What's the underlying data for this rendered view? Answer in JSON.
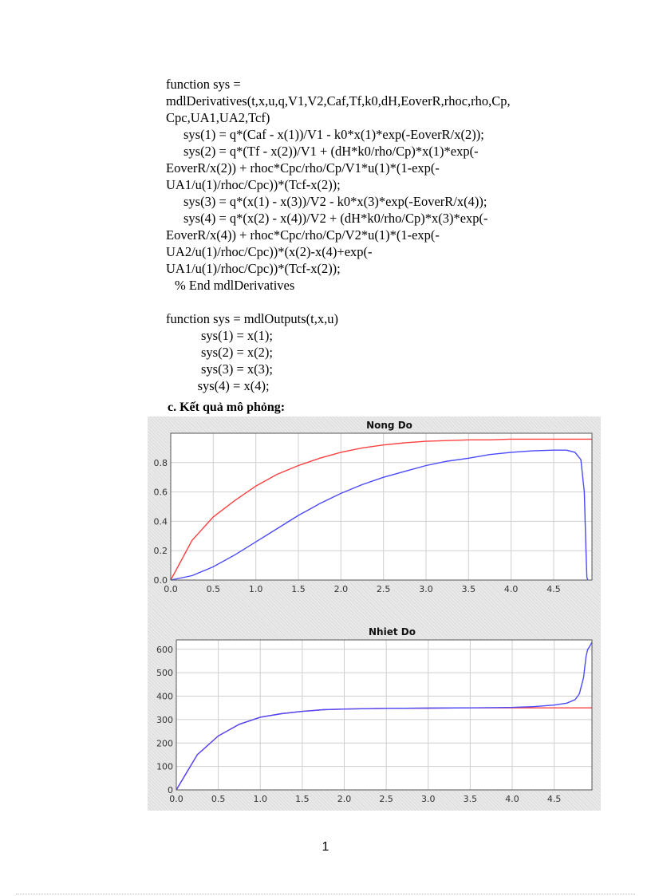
{
  "code_block": {
    "lines": [
      {
        "text": "function sys =",
        "indent": 0
      },
      {
        "text": "mdlDerivatives(t,x,u,q,V1,V2,Caf,Tf,k0,dH,EoverR,rhoc,rho,Cp,",
        "indent": 0
      },
      {
        "text": "Cpc,UA1,UA2,Tcf)",
        "indent": 0
      },
      {
        "text": "sys(1) = q*(Caf - x(1))/V1  - k0*x(1)*exp(-EoverR/x(2));",
        "indent": 1
      },
      {
        "text": "sys(2) = q*(Tf - x(2))/V1  + (dH*k0/rho/Cp)*x(1)*exp(-",
        "indent": 1
      },
      {
        "text": "EoverR/x(2))  + rhoc*Cpc/rho/Cp/V1*u(1)*(1-exp(-",
        "indent": 0
      },
      {
        "text": "UA1/u(1)/rhoc/Cpc))*(Tcf-x(2));",
        "indent": 0
      },
      {
        "text": "sys(3) = q*(x(1)  - x(3))/V2  - k0*x(3)*exp(-EoverR/x(4));",
        "indent": 1
      },
      {
        "text": "sys(4) = q*(x(2)  - x(4))/V2  + (dH*k0/rho/Cp)*x(3)*exp(-",
        "indent": 1
      },
      {
        "text": "EoverR/x(4))  + rhoc*Cpc/rho/Cp/V2*u(1)*(1-exp(-",
        "indent": 0
      },
      {
        "text": "UA2/u(1)/rhoc/Cpc))*(x(2)-x(4)+exp(-",
        "indent": 0
      },
      {
        "text": "UA1/u(1)/rhoc/Cpc))*(Tcf-x(2));",
        "indent": 0
      },
      {
        "text": "% End mdlDerivatives",
        "indent": 0.5
      },
      {
        "text": "",
        "indent": 0
      },
      {
        "text": "function sys = mdlOutputs(t,x,u)",
        "indent": 0
      },
      {
        "text": "sys(1) = x(1);",
        "indent": 2
      },
      {
        "text": "sys(2) = x(2);",
        "indent": 2
      },
      {
        "text": "sys(3) = x(3);",
        "indent": 2
      },
      {
        "text": "sys(4) = x(4);",
        "indent": 1.8
      }
    ]
  },
  "section_heading": "c. Kết quả mô phỏng:",
  "page_number": "1",
  "colors": {
    "series_red": "#ff4040",
    "series_blue": "#4a4aff",
    "grid": "#cfcfcf",
    "plot_bg": "#ffffff"
  },
  "chart_data": [
    {
      "type": "line",
      "title": "Nong Do",
      "xlim": [
        0,
        4.95
      ],
      "ylim": [
        0,
        1.0
      ],
      "x_ticks": [
        "0.0",
        "0.5",
        "1.0",
        "1.5",
        "2.0",
        "2.5",
        "3.0",
        "3.5",
        "4.0",
        "4.5"
      ],
      "y_ticks": [
        "0.0",
        "0.2",
        "0.4",
        "0.6",
        "0.8"
      ],
      "y_tick_values": [
        0,
        0.2,
        0.4,
        0.6,
        0.8
      ],
      "grid": true,
      "series": [
        {
          "color": "red",
          "x": [
            0.0,
            0.25,
            0.5,
            0.75,
            1.0,
            1.25,
            1.5,
            1.75,
            2.0,
            2.25,
            2.5,
            2.75,
            3.0,
            3.25,
            3.5,
            3.75,
            4.0,
            4.25,
            4.5,
            4.75,
            4.95
          ],
          "y": [
            0.0,
            0.27,
            0.43,
            0.54,
            0.64,
            0.72,
            0.78,
            0.83,
            0.87,
            0.9,
            0.92,
            0.935,
            0.945,
            0.95,
            0.955,
            0.955,
            0.96,
            0.96,
            0.96,
            0.96,
            0.96
          ]
        },
        {
          "color": "blue",
          "x": [
            0.0,
            0.25,
            0.5,
            0.75,
            1.0,
            1.25,
            1.5,
            1.75,
            2.0,
            2.25,
            2.5,
            2.75,
            3.0,
            3.25,
            3.5,
            3.75,
            4.0,
            4.25,
            4.5,
            4.65,
            4.75,
            4.82,
            4.86,
            4.88,
            4.89,
            4.9
          ],
          "y": [
            0.0,
            0.03,
            0.09,
            0.17,
            0.26,
            0.35,
            0.44,
            0.52,
            0.59,
            0.65,
            0.7,
            0.74,
            0.78,
            0.81,
            0.83,
            0.855,
            0.87,
            0.88,
            0.885,
            0.885,
            0.87,
            0.82,
            0.6,
            0.2,
            0.02,
            0.0
          ]
        }
      ]
    },
    {
      "type": "line",
      "title": "Nhiet Do",
      "xlim": [
        0,
        4.95
      ],
      "ylim": [
        0,
        640
      ],
      "x_ticks": [
        "0.0",
        "0.5",
        "1.0",
        "1.5",
        "2.0",
        "2.5",
        "3.0",
        "3.5",
        "4.0",
        "4.5"
      ],
      "y_ticks": [
        "0",
        "100",
        "200",
        "300",
        "400",
        "500",
        "600"
      ],
      "y_tick_values": [
        0,
        100,
        200,
        300,
        400,
        500,
        600
      ],
      "grid": true,
      "series": [
        {
          "color": "red",
          "x": [
            0.0,
            0.1,
            0.25,
            0.5,
            0.75,
            1.0,
            1.25,
            1.5,
            1.75,
            2.0,
            2.5,
            3.0,
            3.5,
            4.0,
            4.5,
            4.95
          ],
          "y": [
            0,
            60,
            150,
            230,
            280,
            310,
            325,
            335,
            342,
            345,
            348,
            349,
            350,
            350,
            350,
            350
          ]
        },
        {
          "color": "blue",
          "x": [
            0.0,
            0.1,
            0.25,
            0.5,
            0.75,
            1.0,
            1.25,
            1.5,
            1.75,
            2.0,
            2.5,
            3.0,
            3.5,
            4.0,
            4.25,
            4.5,
            4.65,
            4.75,
            4.8,
            4.85,
            4.88,
            4.9,
            4.92,
            4.95
          ],
          "y": [
            0,
            60,
            150,
            230,
            280,
            310,
            325,
            335,
            342,
            345,
            348,
            349,
            350,
            352,
            355,
            362,
            370,
            385,
            410,
            480,
            570,
            600,
            610,
            630
          ]
        }
      ]
    }
  ]
}
